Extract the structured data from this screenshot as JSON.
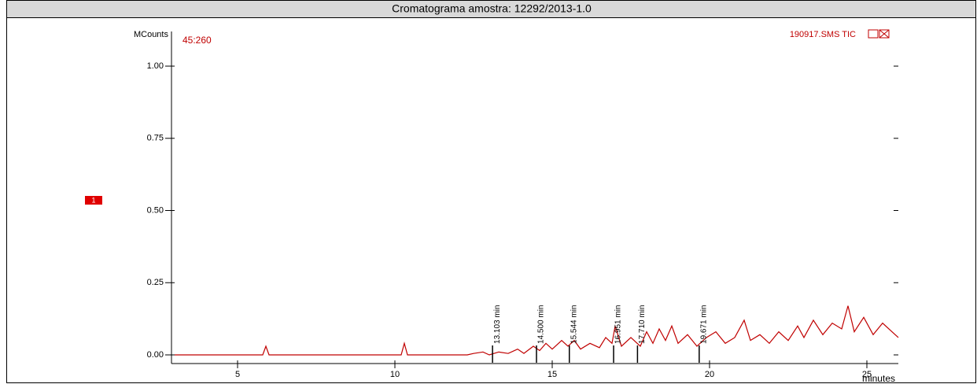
{
  "chart_data": {
    "type": "line",
    "title": "Cromatograma amostra: 12292/2013-1.0",
    "ylabel": "MCounts",
    "xlabel": "minutes",
    "scan_label": "45:260",
    "trace_label": "190917.SMS TIC",
    "marker_label": "1",
    "xlim": [
      2.9,
      26
    ],
    "ylim": [
      -0.03,
      1.12
    ],
    "xticks": [
      5,
      10,
      15,
      20,
      25
    ],
    "yticks": [
      {
        "value": 0,
        "label": "0.00"
      },
      {
        "value": 0.25,
        "label": "0.25"
      },
      {
        "value": 0.5,
        "label": "0.50"
      },
      {
        "value": 0.75,
        "label": "0.75"
      },
      {
        "value": 1,
        "label": "1.00"
      }
    ],
    "x": [
      3.0,
      5.8,
      5.9,
      6.0,
      10.2,
      10.3,
      10.4,
      12.3,
      12.5,
      12.8,
      13.0,
      13.3,
      13.6,
      13.9,
      14.1,
      14.4,
      14.6,
      14.8,
      15.0,
      15.3,
      15.5,
      15.7,
      15.9,
      16.2,
      16.5,
      16.7,
      16.9,
      17.0,
      17.2,
      17.5,
      17.8,
      18.0,
      18.2,
      18.4,
      18.6,
      18.8,
      19.0,
      19.3,
      19.6,
      19.9,
      20.2,
      20.5,
      20.8,
      21.1,
      21.3,
      21.6,
      21.9,
      22.2,
      22.5,
      22.8,
      23.0,
      23.3,
      23.6,
      23.9,
      24.2,
      24.4,
      24.6,
      24.9,
      25.2,
      25.5,
      25.8,
      26.0
    ],
    "series": [
      {
        "name": "190917.SMS TIC",
        "color": "#c00000",
        "values": [
          0,
          0,
          0.03,
          0,
          0,
          0.04,
          0,
          0,
          0.005,
          0.01,
          0,
          0.01,
          0.005,
          0.02,
          0.005,
          0.03,
          0.015,
          0.04,
          0.02,
          0.05,
          0.03,
          0.05,
          0.02,
          0.04,
          0.025,
          0.06,
          0.04,
          0.1,
          0.03,
          0.06,
          0.03,
          0.08,
          0.04,
          0.09,
          0.05,
          0.1,
          0.04,
          0.07,
          0.03,
          0.06,
          0.08,
          0.04,
          0.06,
          0.12,
          0.05,
          0.07,
          0.04,
          0.08,
          0.05,
          0.1,
          0.06,
          0.12,
          0.07,
          0.11,
          0.09,
          0.17,
          0.08,
          0.13,
          0.07,
          0.11,
          0.08,
          0.06
        ]
      }
    ],
    "annotations": [
      {
        "x": 13.103,
        "text": "13.103 min"
      },
      {
        "x": 14.5,
        "text": "14.500 min"
      },
      {
        "x": 15.544,
        "text": "15.544 min"
      },
      {
        "x": 16.951,
        "text": "16.951 min"
      },
      {
        "x": 17.71,
        "text": "17.710 min"
      },
      {
        "x": 19.671,
        "text": "19.671 min"
      }
    ]
  }
}
